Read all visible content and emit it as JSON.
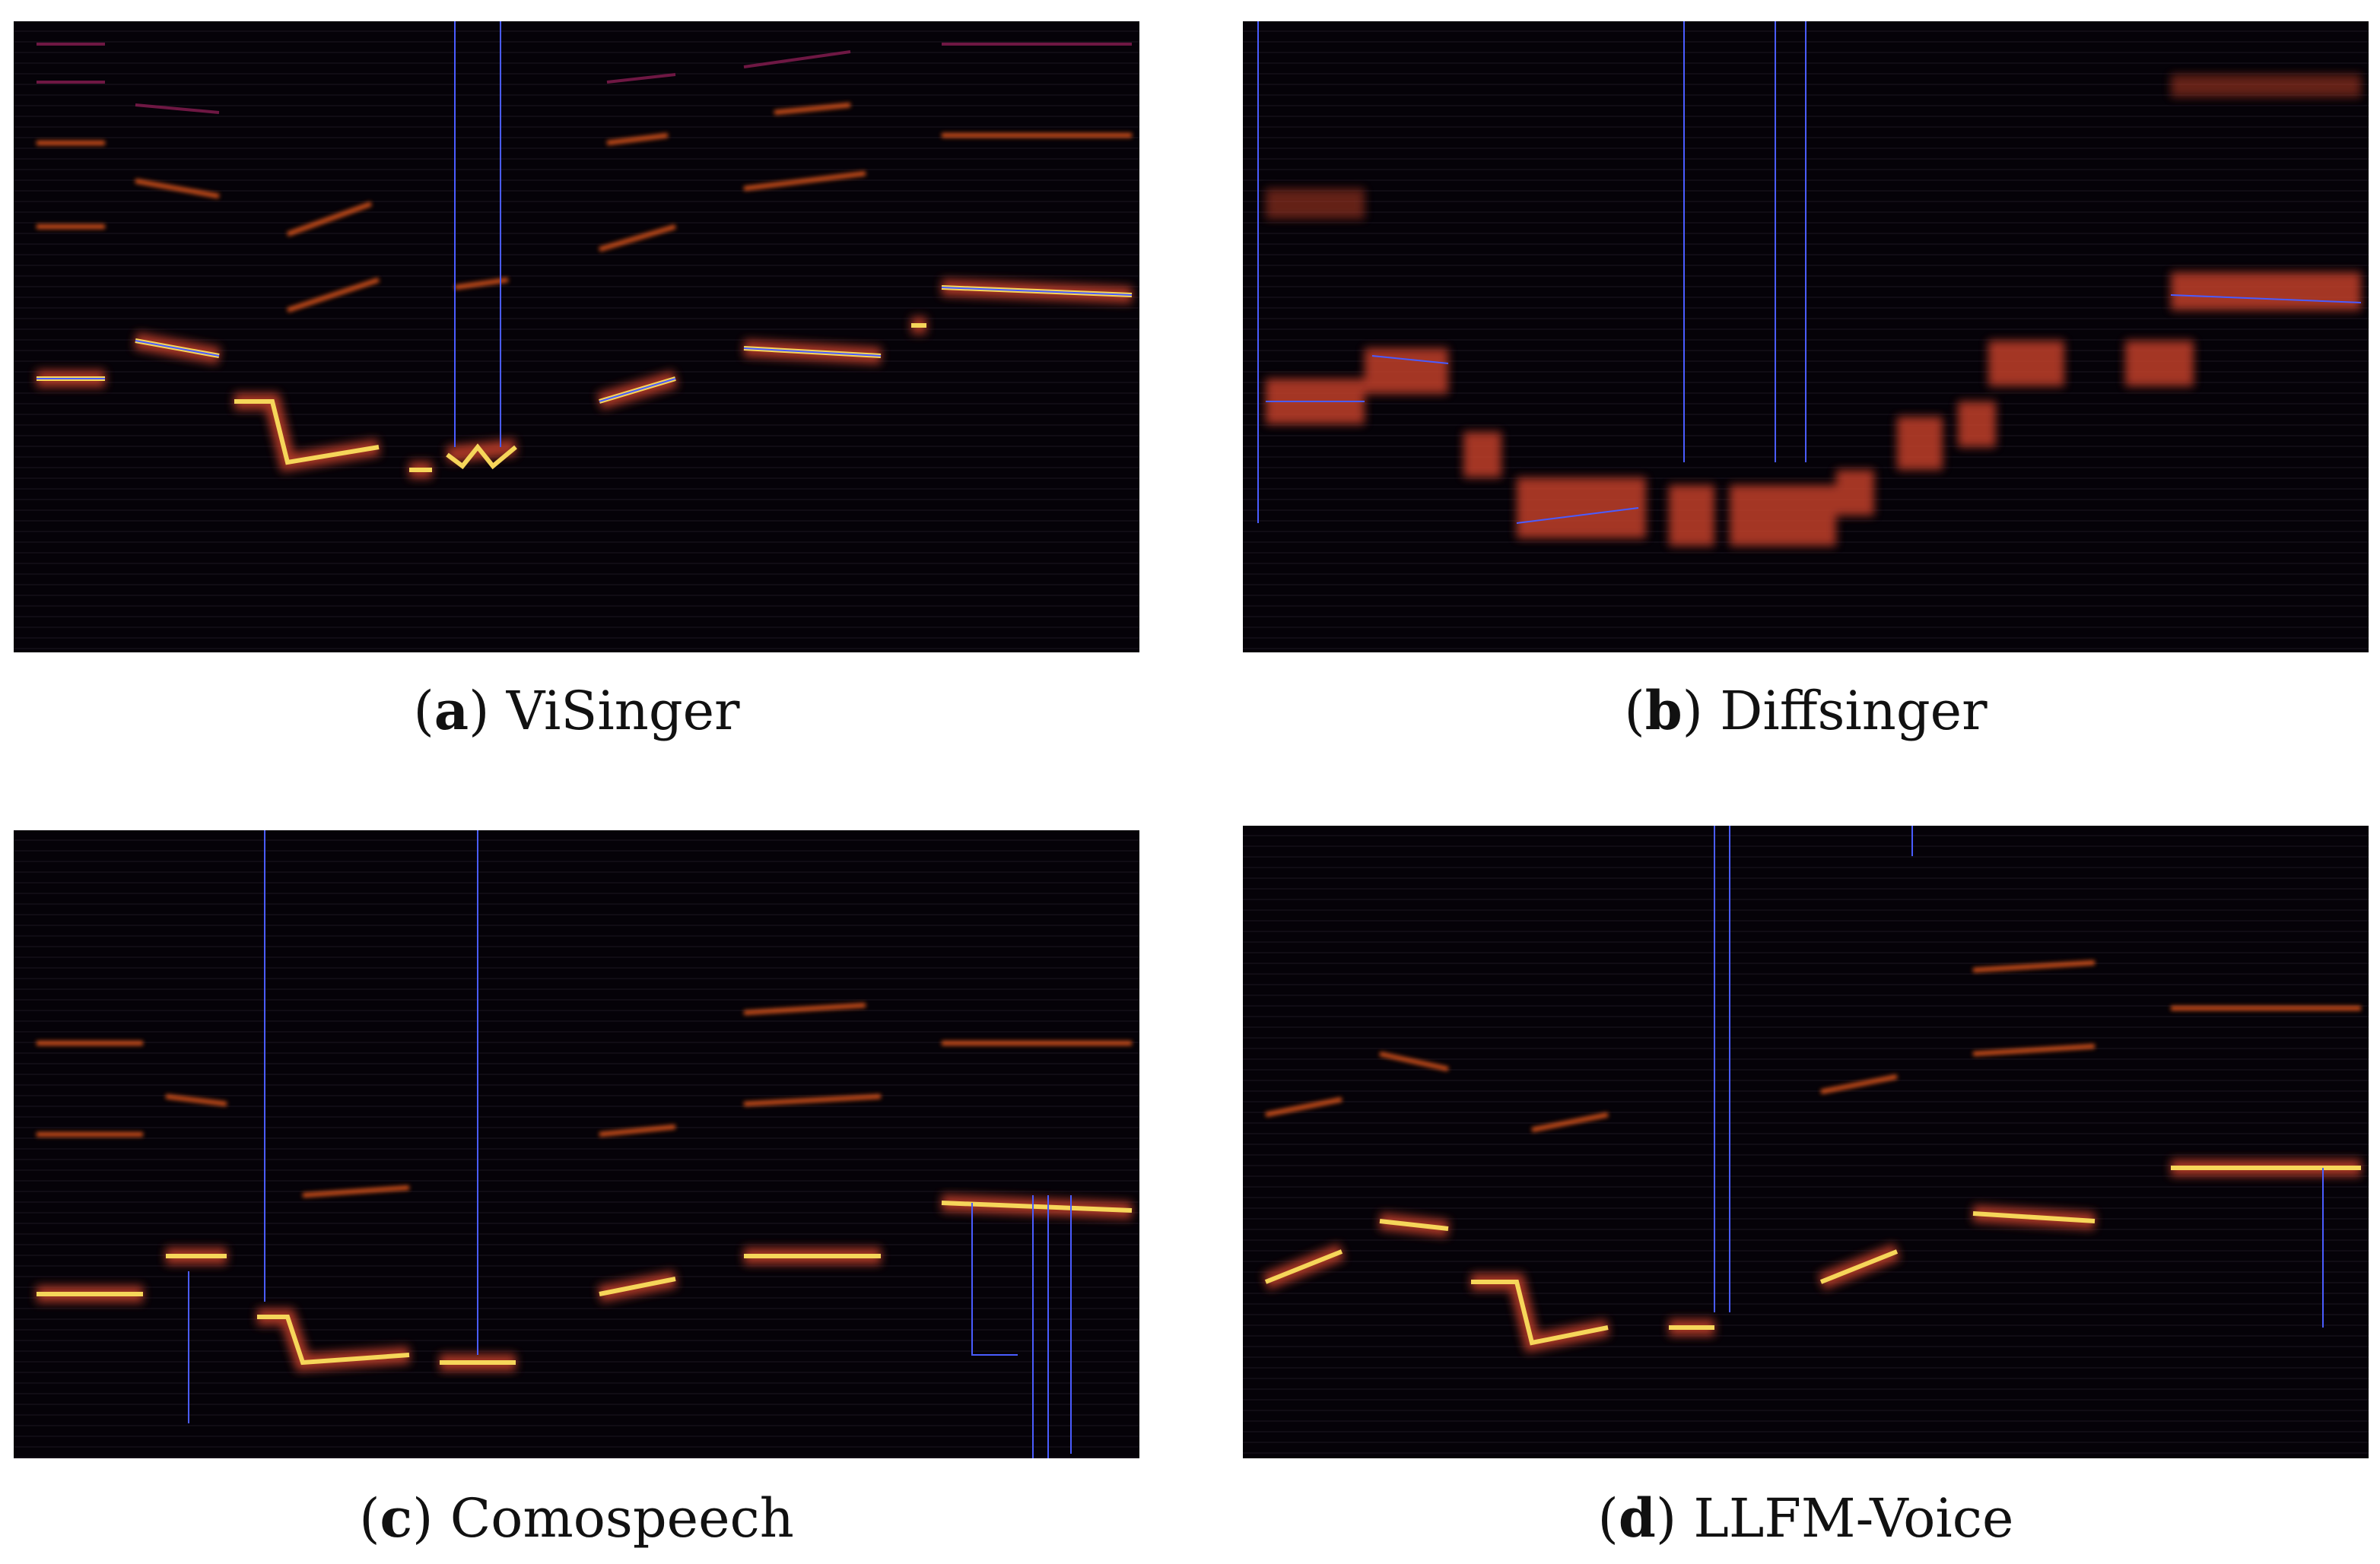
{
  "figure": {
    "panels": [
      {
        "id": "a",
        "label": "a",
        "title": "ViSinger"
      },
      {
        "id": "b",
        "label": "b",
        "title": "Diffsinger"
      },
      {
        "id": "c",
        "label": "c",
        "title": "Comospeech"
      },
      {
        "id": "d",
        "label": "d",
        "title": "LLFM-Voice"
      }
    ]
  },
  "colors": {
    "background": "#050208",
    "harmonic_high": "#f6d65a",
    "harmonic_mid": "#e85a1c",
    "harmonic_low": "#7a1a4a",
    "pitch_curve": "#4a5cff"
  }
}
